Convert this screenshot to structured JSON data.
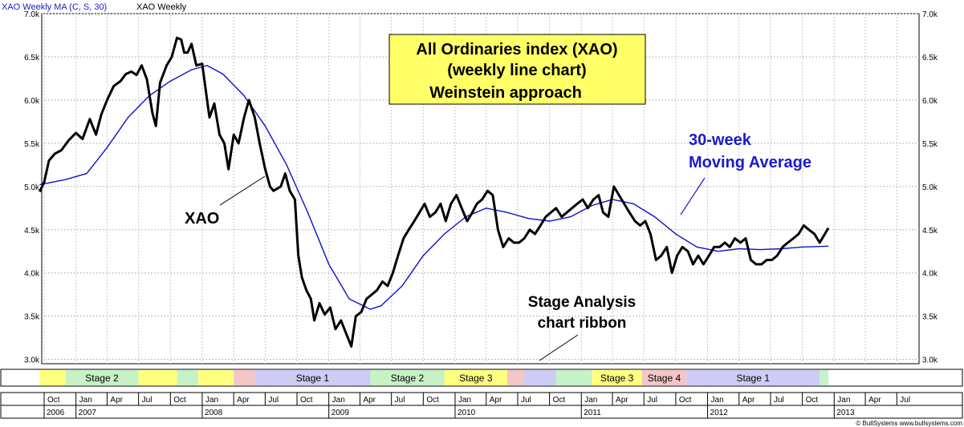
{
  "legend": {
    "ma": "XAO  Weekly MA (C, S, 30)",
    "series": "XAO  Weekly"
  },
  "colors": {
    "price": "#000000",
    "ma": "#1010cc",
    "box": "#ffff66",
    "annotation_blue": "#1a1acc",
    "stage1": "#ccccf5",
    "stage2": "#c6f2c6",
    "stage3": "#ffff80",
    "stage4": "#f5c6c6"
  },
  "title_box": {
    "line1": "All Ordinaries index (XAO)",
    "line2": "(weekly line chart)",
    "line3": "Weinstein approach"
  },
  "annotations": {
    "xao": "XAO",
    "ma_line1": "30-week",
    "ma_line2": "Moving Average",
    "ribbon_line1": "Stage Analysis",
    "ribbon_line2": "chart ribbon"
  },
  "copyright": "© BullSystems www.bullsystems.com",
  "chart_data": {
    "type": "line",
    "title": "All Ordinaries index (XAO)",
    "ylabel": "",
    "xlabel": "",
    "ylim": [
      2950,
      7000
    ],
    "y_ticks": [
      "3.0k",
      "3.5k",
      "4.0k",
      "4.5k",
      "5.0k",
      "5.5k",
      "6.0k",
      "6.5k",
      "7.0k"
    ],
    "y_tick_values": [
      3000,
      3500,
      4000,
      4500,
      5000,
      5500,
      6000,
      6500,
      7000
    ],
    "x_range": [
      "2006-10-01",
      "2013-09-01"
    ],
    "x_axis": {
      "months": [
        {
          "label": "Oct",
          "date": "2006-10-01"
        },
        {
          "label": "Jan",
          "date": "2007-01-01"
        },
        {
          "label": "Apr",
          "date": "2007-04-01"
        },
        {
          "label": "Jul",
          "date": "2007-07-01"
        },
        {
          "label": "Oct",
          "date": "2007-10-01"
        },
        {
          "label": "Jan",
          "date": "2008-01-01"
        },
        {
          "label": "Apr",
          "date": "2008-04-01"
        },
        {
          "label": "Jul",
          "date": "2008-07-01"
        },
        {
          "label": "Oct",
          "date": "2008-10-01"
        },
        {
          "label": "Jan",
          "date": "2009-01-01"
        },
        {
          "label": "Apr",
          "date": "2009-04-01"
        },
        {
          "label": "Jul",
          "date": "2009-07-01"
        },
        {
          "label": "Oct",
          "date": "2009-10-01"
        },
        {
          "label": "Jan",
          "date": "2010-01-01"
        },
        {
          "label": "Apr",
          "date": "2010-04-01"
        },
        {
          "label": "Jul",
          "date": "2010-07-01"
        },
        {
          "label": "Oct",
          "date": "2010-10-01"
        },
        {
          "label": "Jan",
          "date": "2011-01-01"
        },
        {
          "label": "Apr",
          "date": "2011-04-01"
        },
        {
          "label": "Jul",
          "date": "2011-07-01"
        },
        {
          "label": "Oct",
          "date": "2011-10-01"
        },
        {
          "label": "Jan",
          "date": "2012-01-01"
        },
        {
          "label": "Apr",
          "date": "2012-04-01"
        },
        {
          "label": "Jul",
          "date": "2012-07-01"
        },
        {
          "label": "Oct",
          "date": "2012-10-01"
        },
        {
          "label": "Jan",
          "date": "2013-01-01"
        },
        {
          "label": "Apr",
          "date": "2013-04-01"
        },
        {
          "label": "Jul",
          "date": "2013-07-01"
        }
      ],
      "years": [
        {
          "label": "2006",
          "date": "2006-10-01"
        },
        {
          "label": "2007",
          "date": "2007-01-01"
        },
        {
          "label": "2008",
          "date": "2008-01-01"
        },
        {
          "label": "2009",
          "date": "2009-01-01"
        },
        {
          "label": "2010",
          "date": "2010-01-01"
        },
        {
          "label": "2011",
          "date": "2011-01-01"
        },
        {
          "label": "2012",
          "date": "2012-01-01"
        },
        {
          "label": "2013",
          "date": "2013-01-01"
        }
      ]
    },
    "grid": true,
    "series": [
      {
        "key": "price",
        "points": [
          [
            "2006-09-18",
            4940
          ],
          [
            "2006-10-01",
            5050
          ],
          [
            "2006-10-15",
            5300
          ],
          [
            "2006-11-01",
            5380
          ],
          [
            "2006-11-20",
            5420
          ],
          [
            "2006-12-10",
            5530
          ],
          [
            "2007-01-01",
            5620
          ],
          [
            "2007-01-20",
            5550
          ],
          [
            "2007-02-10",
            5780
          ],
          [
            "2007-02-28",
            5600
          ],
          [
            "2007-03-15",
            5830
          ],
          [
            "2007-04-01",
            6000
          ],
          [
            "2007-04-20",
            6160
          ],
          [
            "2007-05-10",
            6220
          ],
          [
            "2007-05-25",
            6300
          ],
          [
            "2007-06-10",
            6330
          ],
          [
            "2007-06-25",
            6290
          ],
          [
            "2007-07-10",
            6400
          ],
          [
            "2007-07-25",
            6240
          ],
          [
            "2007-08-10",
            5850
          ],
          [
            "2007-08-20",
            5700
          ],
          [
            "2007-09-01",
            6200
          ],
          [
            "2007-09-20",
            6400
          ],
          [
            "2007-10-05",
            6500
          ],
          [
            "2007-10-20",
            6720
          ],
          [
            "2007-11-01",
            6700
          ],
          [
            "2007-11-10",
            6550
          ],
          [
            "2007-11-20",
            6550
          ],
          [
            "2007-12-01",
            6650
          ],
          [
            "2007-12-15",
            6400
          ],
          [
            "2008-01-01",
            6420
          ],
          [
            "2008-01-15",
            6000
          ],
          [
            "2008-01-22",
            5800
          ],
          [
            "2008-02-05",
            5960
          ],
          [
            "2008-02-20",
            5600
          ],
          [
            "2008-03-05",
            5500
          ],
          [
            "2008-03-17",
            5200
          ],
          [
            "2008-04-01",
            5600
          ],
          [
            "2008-04-15",
            5500
          ],
          [
            "2008-05-01",
            5800
          ],
          [
            "2008-05-15",
            6000
          ],
          [
            "2008-06-01",
            5800
          ],
          [
            "2008-06-15",
            5500
          ],
          [
            "2008-07-01",
            5200
          ],
          [
            "2008-07-15",
            5000
          ],
          [
            "2008-07-25",
            4950
          ],
          [
            "2008-08-15",
            5000
          ],
          [
            "2008-08-28",
            5150
          ],
          [
            "2008-09-10",
            4950
          ],
          [
            "2008-09-25",
            4850
          ],
          [
            "2008-10-05",
            4200
          ],
          [
            "2008-10-15",
            3950
          ],
          [
            "2008-10-28",
            3800
          ],
          [
            "2008-11-10",
            3700
          ],
          [
            "2008-11-20",
            3450
          ],
          [
            "2008-12-05",
            3650
          ],
          [
            "2008-12-20",
            3520
          ],
          [
            "2009-01-05",
            3600
          ],
          [
            "2009-01-20",
            3350
          ],
          [
            "2009-02-05",
            3450
          ],
          [
            "2009-02-20",
            3300
          ],
          [
            "2009-03-07",
            3150
          ],
          [
            "2009-03-20",
            3500
          ],
          [
            "2009-04-05",
            3550
          ],
          [
            "2009-04-20",
            3700
          ],
          [
            "2009-05-05",
            3750
          ],
          [
            "2009-05-20",
            3800
          ],
          [
            "2009-06-05",
            3900
          ],
          [
            "2009-06-20",
            3850
          ],
          [
            "2009-07-05",
            4000
          ],
          [
            "2009-07-20",
            4200
          ],
          [
            "2009-08-05",
            4400
          ],
          [
            "2009-08-20",
            4500
          ],
          [
            "2009-09-05",
            4600
          ],
          [
            "2009-09-20",
            4700
          ],
          [
            "2009-10-05",
            4800
          ],
          [
            "2009-10-20",
            4650
          ],
          [
            "2009-11-05",
            4700
          ],
          [
            "2009-11-20",
            4800
          ],
          [
            "2009-12-05",
            4600
          ],
          [
            "2009-12-20",
            4800
          ],
          [
            "2010-01-05",
            4900
          ],
          [
            "2010-01-20",
            4750
          ],
          [
            "2010-02-05",
            4600
          ],
          [
            "2010-02-20",
            4700
          ],
          [
            "2010-03-05",
            4800
          ],
          [
            "2010-03-20",
            4850
          ],
          [
            "2010-04-05",
            4950
          ],
          [
            "2010-04-20",
            4900
          ],
          [
            "2010-05-05",
            4500
          ],
          [
            "2010-05-20",
            4300
          ],
          [
            "2010-06-05",
            4400
          ],
          [
            "2010-06-20",
            4350
          ],
          [
            "2010-07-05",
            4350
          ],
          [
            "2010-07-20",
            4400
          ],
          [
            "2010-08-05",
            4500
          ],
          [
            "2010-08-20",
            4450
          ],
          [
            "2010-09-05",
            4550
          ],
          [
            "2010-09-20",
            4650
          ],
          [
            "2010-10-05",
            4700
          ],
          [
            "2010-10-20",
            4750
          ],
          [
            "2010-11-05",
            4650
          ],
          [
            "2010-11-20",
            4700
          ],
          [
            "2010-12-05",
            4750
          ],
          [
            "2010-12-20",
            4800
          ],
          [
            "2011-01-05",
            4850
          ],
          [
            "2011-01-20",
            4750
          ],
          [
            "2011-02-05",
            4850
          ],
          [
            "2011-02-20",
            4900
          ],
          [
            "2011-03-05",
            4700
          ],
          [
            "2011-03-20",
            4650
          ],
          [
            "2011-04-05",
            5000
          ],
          [
            "2011-04-20",
            4900
          ],
          [
            "2011-05-05",
            4800
          ],
          [
            "2011-05-20",
            4700
          ],
          [
            "2011-06-05",
            4600
          ],
          [
            "2011-06-20",
            4550
          ],
          [
            "2011-07-05",
            4600
          ],
          [
            "2011-07-20",
            4450
          ],
          [
            "2011-08-05",
            4150
          ],
          [
            "2011-08-20",
            4200
          ],
          [
            "2011-09-05",
            4300
          ],
          [
            "2011-09-20",
            4000
          ],
          [
            "2011-10-05",
            4200
          ],
          [
            "2011-10-20",
            4300
          ],
          [
            "2011-11-05",
            4250
          ],
          [
            "2011-11-20",
            4100
          ],
          [
            "2011-12-05",
            4200
          ],
          [
            "2011-12-20",
            4100
          ],
          [
            "2012-01-05",
            4200
          ],
          [
            "2012-01-20",
            4300
          ],
          [
            "2012-02-05",
            4300
          ],
          [
            "2012-02-20",
            4350
          ],
          [
            "2012-03-05",
            4300
          ],
          [
            "2012-03-20",
            4400
          ],
          [
            "2012-04-05",
            4350
          ],
          [
            "2012-04-20",
            4400
          ],
          [
            "2012-05-05",
            4150
          ],
          [
            "2012-05-20",
            4100
          ],
          [
            "2012-06-05",
            4100
          ],
          [
            "2012-06-20",
            4150
          ],
          [
            "2012-07-05",
            4150
          ],
          [
            "2012-07-20",
            4200
          ],
          [
            "2012-08-05",
            4300
          ],
          [
            "2012-08-20",
            4350
          ],
          [
            "2012-09-05",
            4400
          ],
          [
            "2012-09-20",
            4450
          ],
          [
            "2012-10-05",
            4550
          ],
          [
            "2012-10-20",
            4500
          ],
          [
            "2012-11-05",
            4450
          ],
          [
            "2012-11-20",
            4350
          ],
          [
            "2012-12-05",
            4450
          ],
          [
            "2012-12-15",
            4520
          ]
        ]
      },
      {
        "key": "ma",
        "points": [
          [
            "2006-09-18",
            5020
          ],
          [
            "2006-12-01",
            5080
          ],
          [
            "2007-02-01",
            5150
          ],
          [
            "2007-04-01",
            5450
          ],
          [
            "2007-06-01",
            5800
          ],
          [
            "2007-08-01",
            6050
          ],
          [
            "2007-10-01",
            6220
          ],
          [
            "2007-12-01",
            6350
          ],
          [
            "2008-01-15",
            6400
          ],
          [
            "2008-03-01",
            6300
          ],
          [
            "2008-05-01",
            6050
          ],
          [
            "2008-07-01",
            5700
          ],
          [
            "2008-09-01",
            5250
          ],
          [
            "2008-11-01",
            4700
          ],
          [
            "2009-01-01",
            4100
          ],
          [
            "2009-03-01",
            3700
          ],
          [
            "2009-05-01",
            3580
          ],
          [
            "2009-06-01",
            3620
          ],
          [
            "2009-08-01",
            3850
          ],
          [
            "2009-10-01",
            4200
          ],
          [
            "2009-12-01",
            4450
          ],
          [
            "2010-02-01",
            4650
          ],
          [
            "2010-04-01",
            4750
          ],
          [
            "2010-06-01",
            4700
          ],
          [
            "2010-08-01",
            4630
          ],
          [
            "2010-10-01",
            4600
          ],
          [
            "2010-12-01",
            4650
          ],
          [
            "2011-02-01",
            4780
          ],
          [
            "2011-04-01",
            4850
          ],
          [
            "2011-06-01",
            4800
          ],
          [
            "2011-08-01",
            4650
          ],
          [
            "2011-10-01",
            4450
          ],
          [
            "2011-12-01",
            4300
          ],
          [
            "2012-02-01",
            4250
          ],
          [
            "2012-04-01",
            4280
          ],
          [
            "2012-06-01",
            4270
          ],
          [
            "2012-08-01",
            4280
          ],
          [
            "2012-10-01",
            4300
          ],
          [
            "2012-12-15",
            4310
          ]
        ]
      }
    ],
    "ribbon": [
      {
        "start": "2006-09-18",
        "end": "2006-12-01",
        "stage": 3,
        "label": ""
      },
      {
        "start": "2006-12-01",
        "end": "2007-07-01",
        "stage": 2,
        "label": "Stage 2"
      },
      {
        "start": "2007-07-01",
        "end": "2007-10-20",
        "stage": 3,
        "label": ""
      },
      {
        "start": "2007-10-20",
        "end": "2007-12-20",
        "stage": 2,
        "label": ""
      },
      {
        "start": "2007-12-20",
        "end": "2008-04-01",
        "stage": 3,
        "label": ""
      },
      {
        "start": "2008-04-01",
        "end": "2008-06-01",
        "stage": 4,
        "label": ""
      },
      {
        "start": "2008-06-01",
        "end": "2009-05-01",
        "stage": 1,
        "label": "Stage 1"
      },
      {
        "start": "2009-05-01",
        "end": "2009-12-01",
        "stage": 2,
        "label": "Stage 2"
      },
      {
        "start": "2009-12-01",
        "end": "2010-06-01",
        "stage": 3,
        "label": "Stage 3"
      },
      {
        "start": "2010-06-01",
        "end": "2010-07-20",
        "stage": 4,
        "label": ""
      },
      {
        "start": "2010-07-20",
        "end": "2010-10-20",
        "stage": 1,
        "label": ""
      },
      {
        "start": "2010-10-20",
        "end": "2011-02-01",
        "stage": 2,
        "label": ""
      },
      {
        "start": "2011-02-01",
        "end": "2011-06-25",
        "stage": 3,
        "label": "Stage 3"
      },
      {
        "start": "2011-06-25",
        "end": "2011-11-01",
        "stage": 4,
        "label": "Stage 4"
      },
      {
        "start": "2011-11-01",
        "end": "2012-11-20",
        "stage": 1,
        "label": "Stage 1"
      },
      {
        "start": "2012-11-20",
        "end": "2012-12-15",
        "stage": 2,
        "label": ""
      }
    ]
  }
}
